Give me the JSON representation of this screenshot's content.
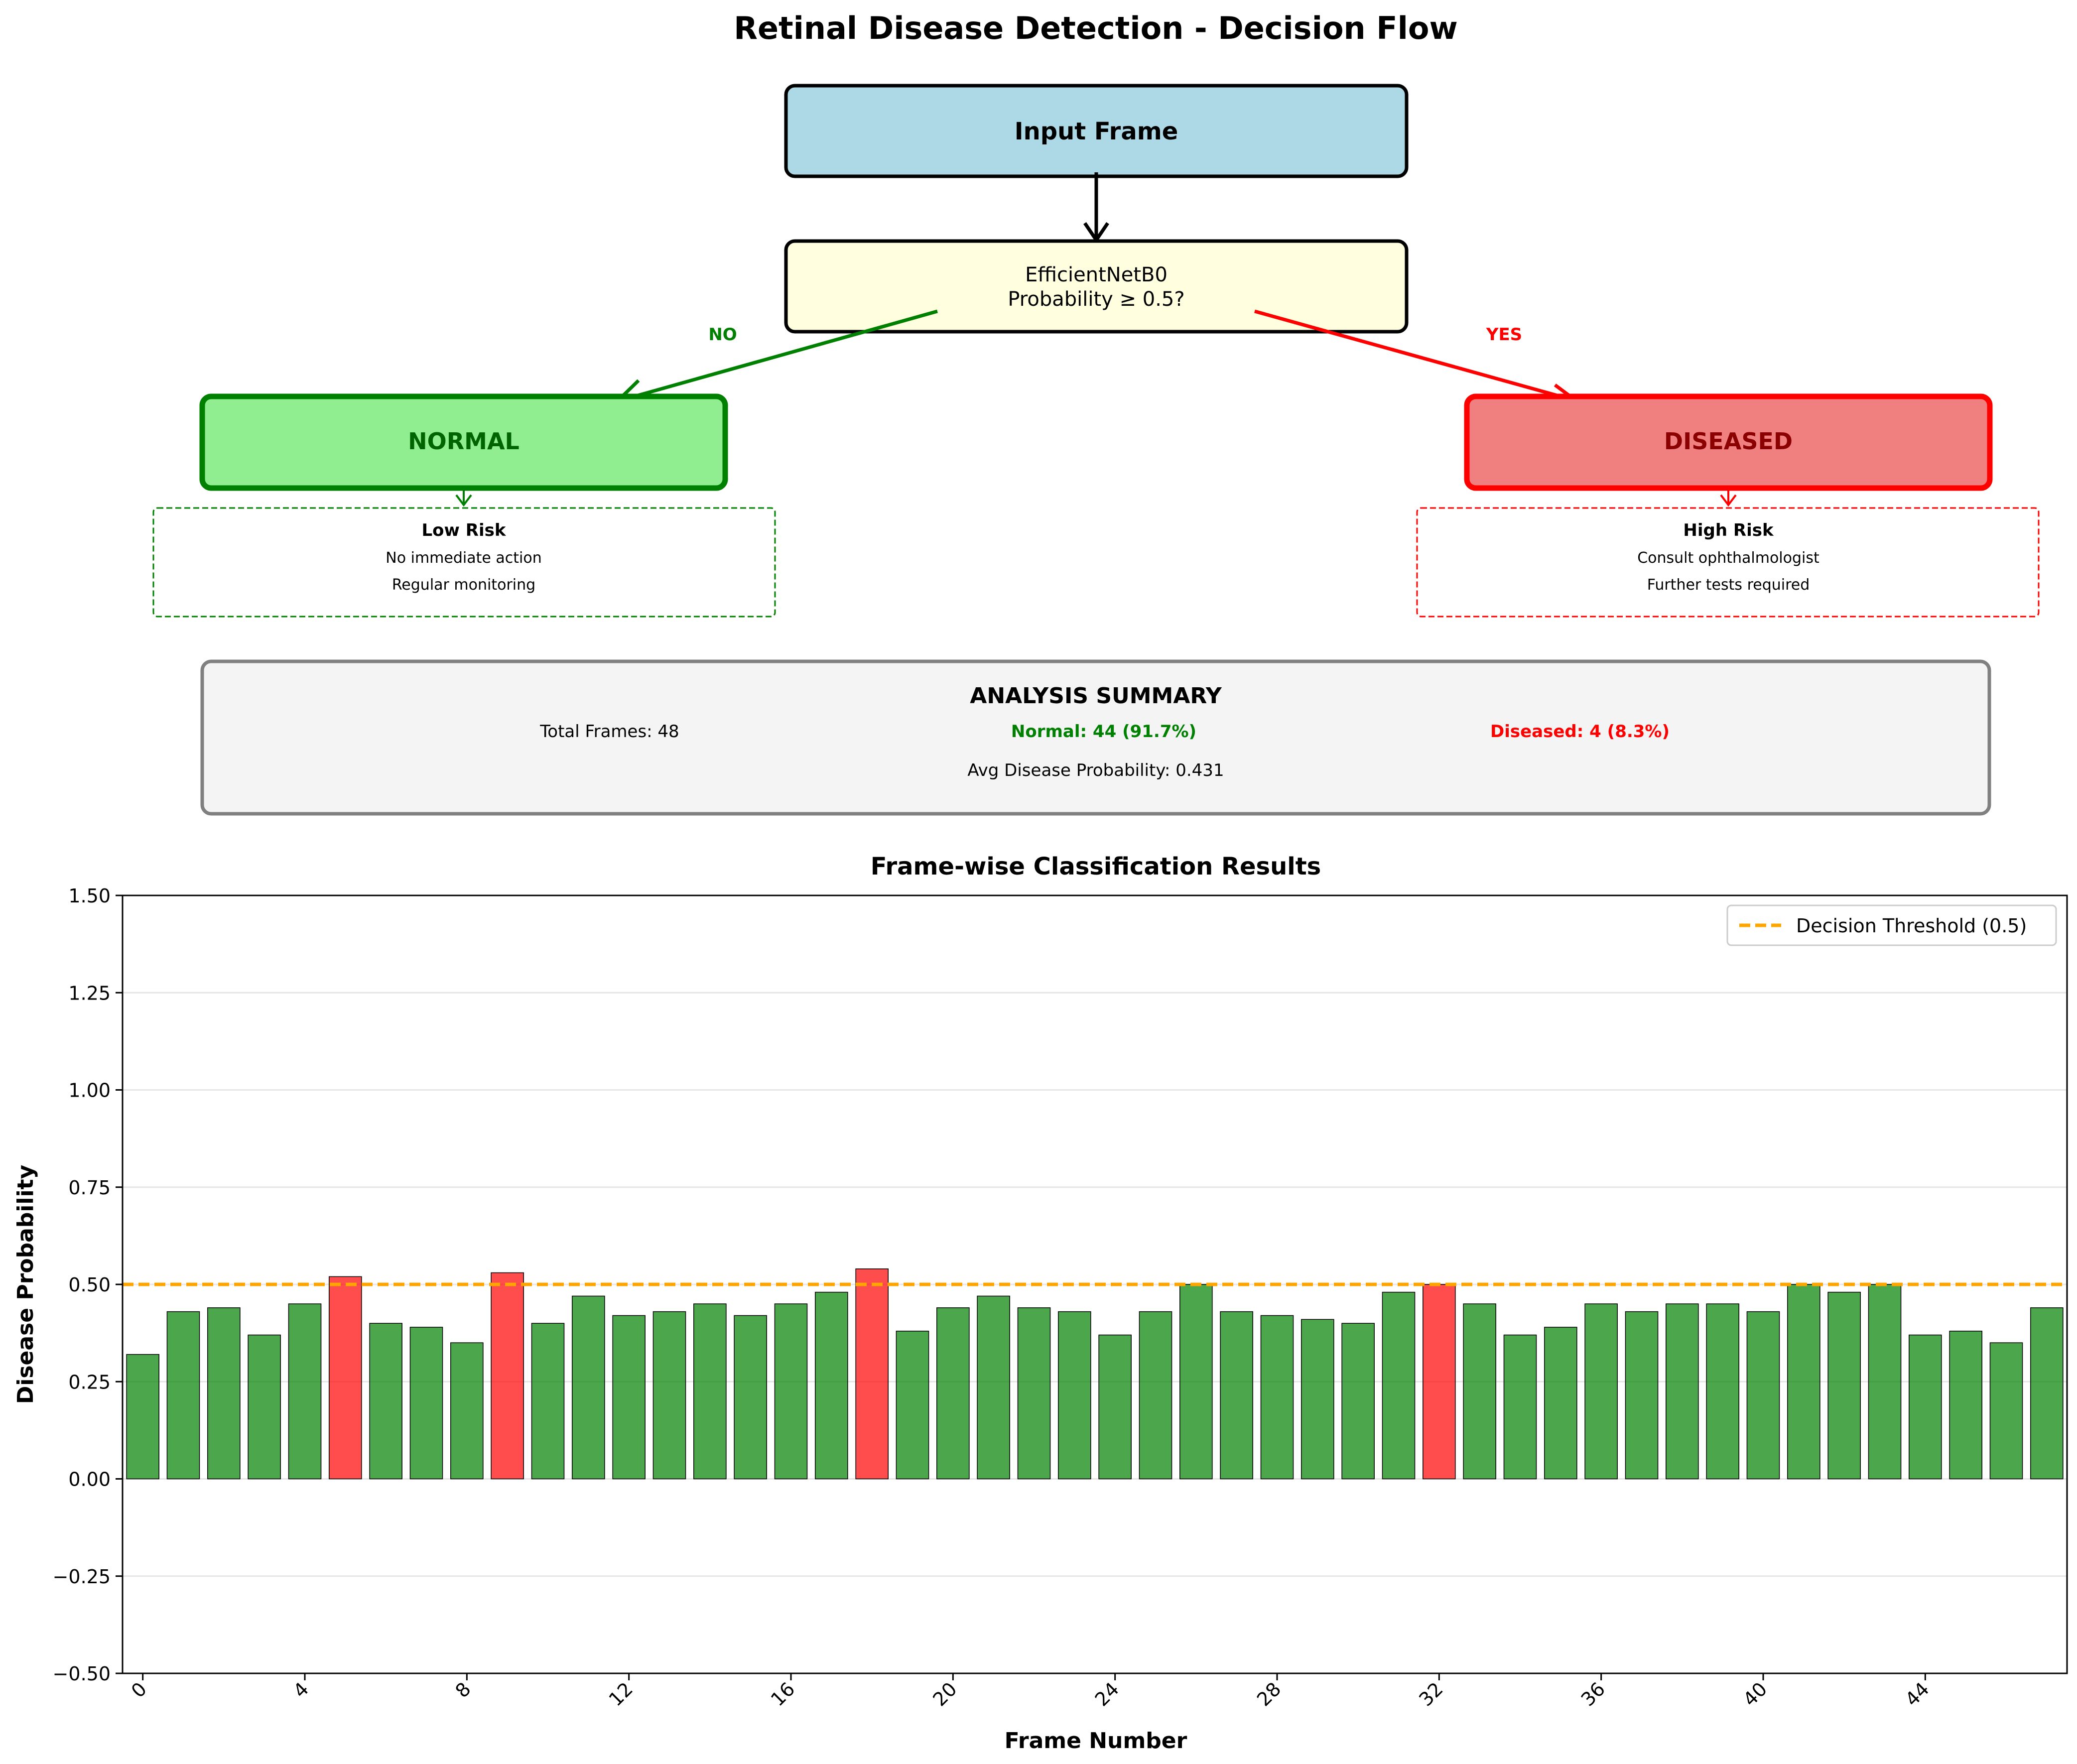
{
  "flow": {
    "title": "Retinal Disease Detection - Decision Flow",
    "input_label": "Input Frame",
    "model_line1": "EfficientNetB0",
    "model_line2": "Probability ≥ 0.5?",
    "no_label": "NO",
    "yes_label": "YES",
    "normal_label": "NORMAL",
    "diseased_label": "DISEASED",
    "low_risk": {
      "title": "Low Risk",
      "line1": "No immediate action",
      "line2": "Regular monitoring"
    },
    "high_risk": {
      "title": "High Risk",
      "line1": "Consult ophthalmologist",
      "line2": "Further tests required"
    },
    "summary": {
      "title": "ANALYSIS SUMMARY",
      "total": "Total Frames: 48",
      "normal": "Normal: 44 (91.7%)",
      "diseased": "Diseased: 4 (8.3%)",
      "avg": "Avg Disease Probability: 0.431"
    },
    "colors": {
      "input_fill": "#add8e6",
      "model_fill": "#ffffe0",
      "normal_fill": "#90ee90",
      "normal_edge": "#008000",
      "normal_text": "#006400",
      "diseased_fill": "#f08080",
      "diseased_edge": "#ff0000",
      "diseased_text": "#8b0000",
      "summary_fill": "#f4f4f4",
      "summary_edge": "#808080"
    }
  },
  "chart_data": {
    "type": "bar",
    "title": "Frame-wise Classification Results",
    "xlabel": "Frame Number",
    "ylabel": "Disease Probability",
    "ylim": [
      -0.5,
      1.5
    ],
    "xlim": [
      -0.5,
      47.5
    ],
    "yticks": [
      -0.5,
      -0.25,
      0,
      0.25,
      0.5,
      0.75,
      1.0,
      1.25,
      1.5
    ],
    "ytick_labels": [
      "−0.50",
      "−0.25",
      "0.00",
      "0.25",
      "0.50",
      "0.75",
      "1.00",
      "1.25",
      "1.50"
    ],
    "xticks": [
      0,
      4,
      8,
      12,
      16,
      20,
      24,
      28,
      32,
      36,
      40,
      44
    ],
    "xtick_labels": [
      "0",
      "4",
      "8",
      "12",
      "16",
      "20",
      "24",
      "28",
      "32",
      "36",
      "40",
      "44"
    ],
    "grid": "y",
    "threshold": {
      "value": 0.5,
      "label": "Decision Threshold (0.5)",
      "color": "#ffa500"
    },
    "legend_position": "top-right",
    "normal_color": "#008000",
    "diseased_color": "#ff0000",
    "x": [
      0,
      1,
      2,
      3,
      4,
      5,
      6,
      7,
      8,
      9,
      10,
      11,
      12,
      13,
      14,
      15,
      16,
      17,
      18,
      19,
      20,
      21,
      22,
      23,
      24,
      25,
      26,
      27,
      28,
      29,
      30,
      31,
      32,
      33,
      34,
      35,
      36,
      37,
      38,
      39,
      40,
      41,
      42,
      43,
      44,
      45,
      46,
      47
    ],
    "values": [
      0.32,
      0.43,
      0.44,
      0.37,
      0.45,
      0.52,
      0.4,
      0.39,
      0.35,
      0.53,
      0.4,
      0.47,
      0.42,
      0.43,
      0.45,
      0.42,
      0.45,
      0.48,
      0.54,
      0.38,
      0.44,
      0.47,
      0.44,
      0.43,
      0.37,
      0.43,
      0.5,
      0.43,
      0.42,
      0.41,
      0.4,
      0.48,
      0.5,
      0.45,
      0.37,
      0.39,
      0.45,
      0.43,
      0.45,
      0.45,
      0.43,
      0.5,
      0.48,
      0.5,
      0.37,
      0.38,
      0.35,
      0.44
    ],
    "diseased": [
      false,
      false,
      false,
      false,
      false,
      true,
      false,
      false,
      false,
      true,
      false,
      false,
      false,
      false,
      false,
      false,
      false,
      false,
      true,
      false,
      false,
      false,
      false,
      false,
      false,
      false,
      false,
      false,
      false,
      false,
      false,
      false,
      true,
      false,
      false,
      false,
      false,
      false,
      false,
      false,
      false,
      false,
      false,
      false,
      false,
      false,
      false,
      false
    ]
  }
}
